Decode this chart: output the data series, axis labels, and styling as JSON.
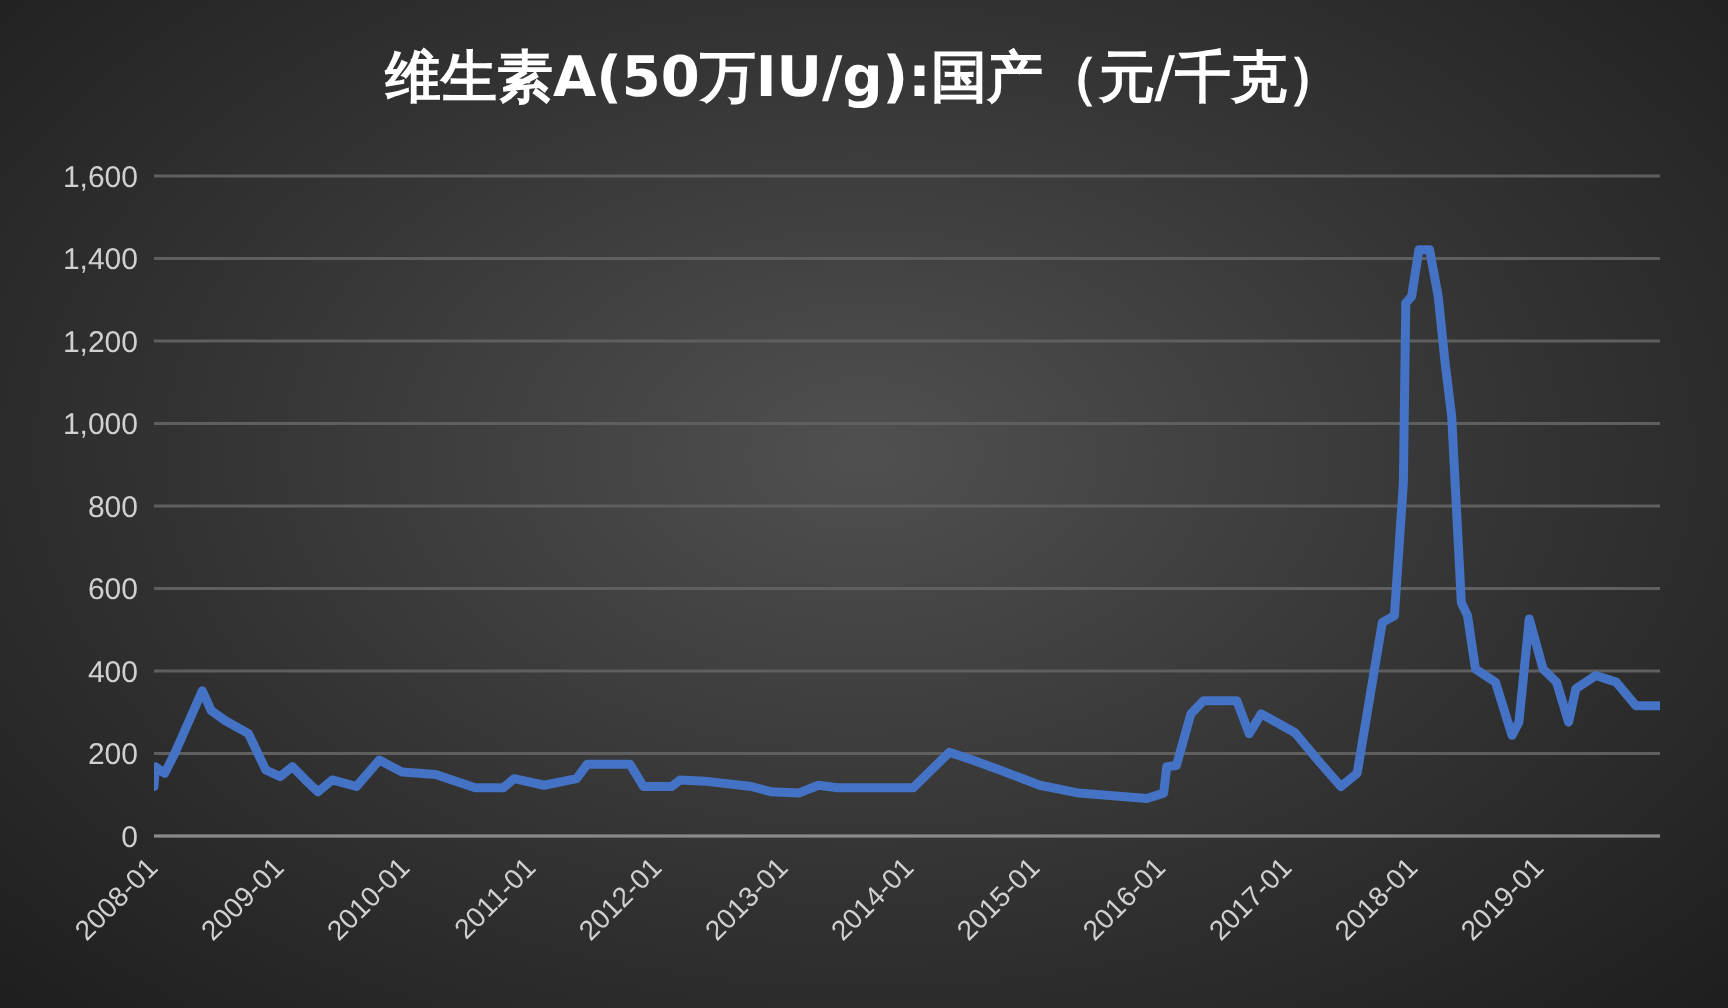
{
  "chart_data": {
    "type": "line",
    "title": "维生素A(50万IU/g):国产（元/千克）",
    "x": [
      "2008-01",
      "2008-01-05",
      "2008-02",
      "2008-03",
      "2008-05-20",
      "2008-06-15",
      "2008-07-25",
      "2008-10",
      "2008-11-20",
      "2009-01",
      "2009-02-05",
      "2009-03-15",
      "2009-04-20",
      "2009-06",
      "2009-08-10",
      "2009-10-15",
      "2009-12-20",
      "2010-03-28",
      "2010-07-20",
      "2010-10-10",
      "2010-11-10",
      "2011-02-05",
      "2011-05-10",
      "2011-06-10",
      "2011-10-12",
      "2011-11-20",
      "2012-02-10",
      "2012-03-05",
      "2012-05-15",
      "2012-09-28",
      "2012-11-25",
      "2013-02-12",
      "2013-04-10",
      "2013-06-05",
      "2014-01-10",
      "2014-04-25",
      "2014-07",
      "2014-09-18",
      "2015-01-12",
      "2015-05-06",
      "2015-11-18",
      "2016-01-06",
      "2016-01-15",
      "2016-02-12",
      "2016-03-25",
      "2016-05-01",
      "2016-08-05",
      "2016-09-10",
      "2016-10-15",
      "2017-01-20",
      "2017-04-05",
      "2017-06-03",
      "2017-07-20",
      "2017-10",
      "2017-11-05",
      "2017-12",
      "2017-12-08",
      "2017-12-25",
      "2018-01-15",
      "2018-02-15",
      "2018-03-12",
      "2018-04-01",
      "2018-04-20",
      "2018-05-18",
      "2018-06-05",
      "2018-06-28",
      "2018-08-25",
      "2018-10-12",
      "2018-11-01",
      "2018-12-01",
      "2019-01-10",
      "2019-02-18",
      "2019-03-25",
      "2019-04-15",
      "2019-06-12",
      "2019-08-10",
      "2019-10-06",
      "2019-12-15"
    ],
    "series": [
      {
        "color": "#4472c4",
        "values": [
          120,
          168,
          152,
          200,
          352,
          304,
          280,
          248,
          160,
          144,
          168,
          136,
          107,
          136,
          120,
          184,
          155,
          149,
          117,
          117,
          139,
          123,
          139,
          174,
          174,
          120,
          120,
          136,
          133,
          120,
          107,
          104,
          123,
          117,
          117,
          203,
          184,
          160,
          123,
          104,
          91,
          104,
          168,
          171,
          296,
          328,
          328,
          248,
          296,
          251,
          176,
          120,
          152,
          518,
          534,
          856,
          1292,
          1308,
          1421,
          1421,
          1308,
          1147,
          1018,
          566,
          534,
          405,
          373,
          244,
          276,
          526,
          405,
          373,
          276,
          357,
          389,
          373,
          316,
          316
        ]
      }
    ],
    "xlim": [
      "2008-01",
      "2019-12-15"
    ],
    "xticks": [
      "2008-01",
      "2009-01",
      "2010-01",
      "2011-01",
      "2012-01",
      "2013-01",
      "2014-01",
      "2015-01",
      "2016-01",
      "2017-01",
      "2018-01",
      "2019-01"
    ],
    "ylim": [
      0,
      1600
    ],
    "yticks": [
      {
        "value": 0,
        "label": "0"
      },
      {
        "value": 200,
        "label": "200"
      },
      {
        "value": 400,
        "label": "400"
      },
      {
        "value": 600,
        "label": "600"
      },
      {
        "value": 800,
        "label": "800"
      },
      {
        "value": 1000,
        "label": "1,000"
      },
      {
        "value": 1200,
        "label": "1,200"
      },
      {
        "value": 1400,
        "label": "1,400"
      },
      {
        "value": 1600,
        "label": "1,600"
      }
    ],
    "grid": "y",
    "marker": "none",
    "line_style": "solid",
    "legend": false
  }
}
